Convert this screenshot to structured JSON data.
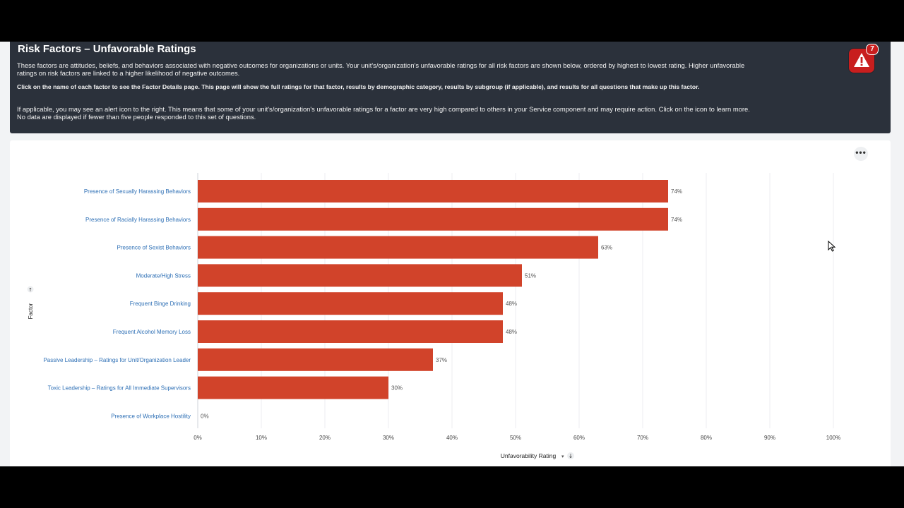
{
  "header": {
    "title": "Risk Factors – Unfavorable Ratings",
    "para1": "These factors are attitudes, beliefs, and behaviors associated with negative outcomes for organizations or units. Your unit's/organization's unfavorable ratings for all risk factors are shown below, ordered by highest to lowest rating. Higher unfavorable ratings on risk factors are linked to a higher likelihood of negative outcomes.",
    "para2": "Click on the name of each factor to see the Factor Details page. This page will show the full ratings for that factor, results by demographic category, results by subgroup (if applicable), and results for all questions that make up this factor.",
    "para3": "If applicable, you may see an alert icon to the right. This means that some of your unit's/organization's unfavorable ratings for a factor are very high compared to others in your Service component and may require action. Click on the icon to learn more. No data are displayed if fewer than five people responded to this set of questions.",
    "alert_icon": "warning-triangle-icon",
    "alert_count": "7",
    "alert_color": "#c81e1e"
  },
  "toolbar": {
    "more_label": "•••",
    "more_icon": "more-horizontal-icon"
  },
  "chart_data": {
    "type": "bar",
    "orientation": "horizontal",
    "categories": [
      "Presence of Sexually Harassing Behaviors",
      "Presence of Racially Harassing Behaviors",
      "Presence of Sexist Behaviors",
      "Moderate/High Stress",
      "Frequent Binge Drinking",
      "Frequent Alcohol Memory Loss",
      "Passive Leadership – Ratings for Unit/Organization Leader",
      "Toxic Leadership – Ratings for All Immediate Supervisors",
      "Presence of Workplace Hostility"
    ],
    "values": [
      74,
      74,
      63,
      51,
      48,
      48,
      37,
      30,
      0
    ],
    "labels": [
      "74%",
      "74%",
      "63%",
      "51%",
      "48%",
      "48%",
      "37%",
      "30%",
      "0%"
    ],
    "xticks": [
      "0%",
      "10%",
      "20%",
      "30%",
      "40%",
      "50%",
      "60%",
      "70%",
      "80%",
      "90%",
      "100%"
    ],
    "xlim": [
      0,
      100
    ],
    "xlabel": "Unfavorability Rating",
    "ylabel": "Factor",
    "bar_color": "#d1432a",
    "category_color": "#2d6fb5",
    "grid": true
  }
}
